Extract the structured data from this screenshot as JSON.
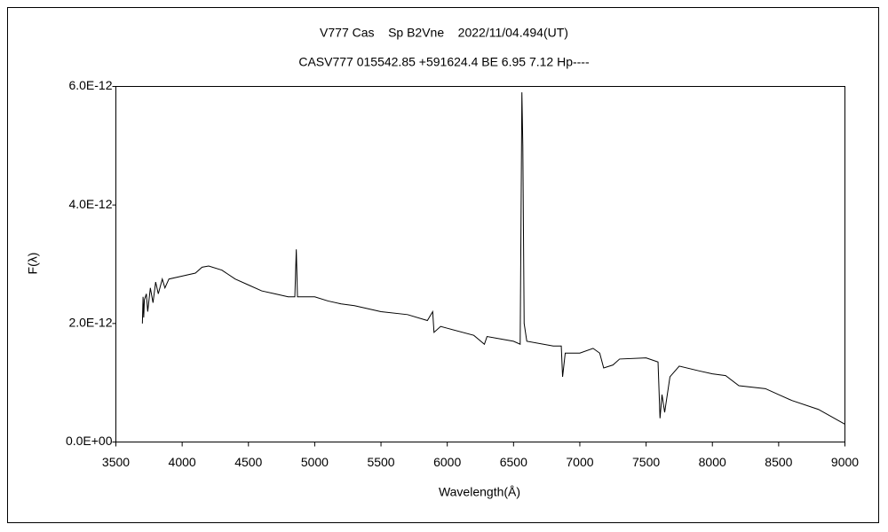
{
  "chart_data": {
    "type": "line",
    "title": "V777 Cas    Sp B2Vne    2022/11/04.494(UT)",
    "subtitle": "CASV777 015542.85 +591624.4 BE 6.95 7.12 Hp----",
    "x_label": "Wavelength(Å)",
    "y_label": "F(λ)",
    "xlim": [
      3500,
      9000
    ],
    "ylim": [
      0,
      6e-12
    ],
    "xticks": [
      3500,
      4000,
      4500,
      5000,
      5500,
      6000,
      6500,
      7000,
      7500,
      8000,
      8500,
      9000
    ],
    "yticks": [
      {
        "value": 0,
        "label": "0.0E+00"
      },
      {
        "value": 2e-12,
        "label": "2.0E-12"
      },
      {
        "value": 4e-12,
        "label": "4.0E-12"
      },
      {
        "value": 6e-12,
        "label": "6.0E-12"
      }
    ],
    "grid": false,
    "series": [
      {
        "name": "V777 Cas",
        "color": "#000000",
        "x": [
          3700,
          3705,
          3710,
          3715,
          3730,
          3740,
          3760,
          3780,
          3800,
          3820,
          3850,
          3870,
          3900,
          4000,
          4100,
          4150,
          4200,
          4300,
          4400,
          4500,
          4600,
          4700,
          4800,
          4850,
          4861,
          4870,
          5000,
          5100,
          5200,
          5300,
          5500,
          5700,
          5850,
          5890,
          5900,
          5950,
          6000,
          6200,
          6280,
          6300,
          6500,
          6550,
          6563,
          6570,
          6580,
          6600,
          6800,
          6860,
          6870,
          6890,
          7000,
          7100,
          7150,
          7180,
          7250,
          7300,
          7500,
          7590,
          7605,
          7620,
          7640,
          7680,
          7750,
          7900,
          8000,
          8100,
          8200,
          8400,
          8500,
          8600,
          8800,
          9000
        ],
        "values": [
          2e-12,
          2.45e-12,
          2.1e-12,
          2.4e-12,
          2.5e-12,
          2.2e-12,
          2.6e-12,
          2.35e-12,
          2.7e-12,
          2.5e-12,
          2.75e-12,
          2.6e-12,
          2.75e-12,
          2.8e-12,
          2.85e-12,
          2.95e-12,
          2.97e-12,
          2.9e-12,
          2.75e-12,
          2.65e-12,
          2.55e-12,
          2.5e-12,
          2.45e-12,
          2.45e-12,
          3.25e-12,
          2.45e-12,
          2.45e-12,
          2.38e-12,
          2.33e-12,
          2.3e-12,
          2.2e-12,
          2.15e-12,
          2.05e-12,
          2.2e-12,
          1.85e-12,
          1.95e-12,
          1.92e-12,
          1.8e-12,
          1.65e-12,
          1.78e-12,
          1.7e-12,
          1.65e-12,
          5.9e-12,
          5e-12,
          2e-12,
          1.7e-12,
          1.62e-12,
          1.62e-12,
          1.1e-12,
          1.5e-12,
          1.5e-12,
          1.58e-12,
          1.5e-12,
          1.25e-12,
          1.3e-12,
          1.4e-12,
          1.42e-12,
          1.35e-12,
          4e-13,
          8e-13,
          5e-13,
          1.1e-12,
          1.28e-12,
          1.2e-12,
          1.15e-12,
          1.12e-12,
          9.5e-13,
          9e-13,
          8e-13,
          7e-13,
          5.5e-13,
          3e-13
        ]
      }
    ]
  }
}
